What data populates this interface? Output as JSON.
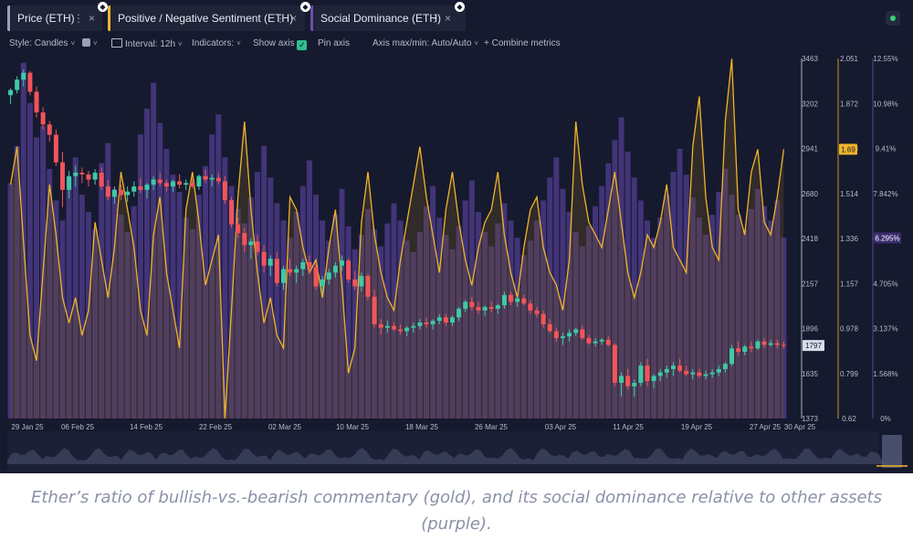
{
  "tabs": [
    {
      "label": "Price (ETH)",
      "color": "#9aa0b8"
    },
    {
      "label": "Positive / Negative Sentiment (ETH)",
      "color": "#f0b429"
    },
    {
      "label": "Social Dominance (ETH)",
      "color": "#6b4fa8"
    }
  ],
  "icons": {
    "tab_menu": "⋮",
    "tab_close": "×",
    "tab_asset": "ethereum-icon",
    "chevron": "˅",
    "checkmark": "✓"
  },
  "toolbar": {
    "style": "Style: Candles",
    "interval": "Interval: 12h",
    "indicators": "Indicators:",
    "show_axis": "Show axis",
    "pin_axis": "Pin axis",
    "axis_maxmin": "Axis max/min: Auto/Auto",
    "combine": "+ Combine metrics"
  },
  "caption": "Ether’s ratio of bullish-vs.-bearish commentary (gold), and its social dominance relative to other assets (purple).",
  "chart_data": {
    "type": "candlestick+line+bar",
    "x_ticks": [
      "29 Jan 25",
      "06 Feb 25",
      "14 Feb 25",
      "22 Feb 25",
      "02 Mar 25",
      "10 Mar 25",
      "18 Mar 25",
      "26 Mar 25",
      "03 Apr 25",
      "11 Apr 25",
      "19 Apr 25",
      "27 Apr 25",
      "30 Apr 25"
    ],
    "price_axis": {
      "ticks": [
        "3463",
        "3202",
        "2941",
        "2680",
        "2418",
        "2157",
        "1896",
        "1635",
        "1373"
      ],
      "min": 1373,
      "max": 3463,
      "current": "1797"
    },
    "sentiment_axis": {
      "ticks": [
        "2.051",
        "1.872",
        "1.693",
        "1.514",
        "1.336",
        "1.157",
        "0.978",
        "0.799",
        "0.62"
      ],
      "min": 0.62,
      "max": 2.051,
      "current": "1.69"
    },
    "dominance_axis": {
      "ticks": [
        "12.55%",
        "10.98%",
        "9.41%",
        "7.842%",
        "6.295%",
        "4.705%",
        "3.137%",
        "1.568%",
        "0%"
      ],
      "min": 0,
      "max": 12.55,
      "current": "6.295%"
    },
    "colors": {
      "up": "#3ec9a7",
      "down": "#f2545b",
      "sentiment": "#f0b429",
      "dominance": "#4a3a85",
      "background": "#161a2e"
    },
    "price_ohlc": [
      [
        3250,
        3290,
        3200,
        3280
      ],
      [
        3280,
        3360,
        3260,
        3340
      ],
      [
        3340,
        3400,
        3300,
        3380
      ],
      [
        3380,
        3390,
        3250,
        3270
      ],
      [
        3270,
        3300,
        3120,
        3150
      ],
      [
        3150,
        3180,
        3050,
        3080
      ],
      [
        3080,
        3100,
        2980,
        3020
      ],
      [
        3020,
        3050,
        2840,
        2860
      ],
      [
        2860,
        2920,
        2600,
        2700
      ],
      [
        2700,
        2810,
        2650,
        2780
      ],
      [
        2780,
        2840,
        2720,
        2800
      ],
      [
        2800,
        2830,
        2740,
        2790
      ],
      [
        2790,
        2810,
        2720,
        2760
      ],
      [
        2760,
        2820,
        2730,
        2800
      ],
      [
        2800,
        2830,
        2700,
        2720
      ],
      [
        2720,
        2760,
        2640,
        2660
      ],
      [
        2660,
        2720,
        2620,
        2700
      ],
      [
        2700,
        2730,
        2640,
        2670
      ],
      [
        2670,
        2720,
        2630,
        2690
      ],
      [
        2690,
        2750,
        2660,
        2720
      ],
      [
        2720,
        2770,
        2680,
        2700
      ],
      [
        2700,
        2740,
        2650,
        2730
      ],
      [
        2730,
        2780,
        2700,
        2760
      ],
      [
        2760,
        2800,
        2720,
        2740
      ],
      [
        2740,
        2760,
        2690,
        2720
      ],
      [
        2720,
        2760,
        2690,
        2750
      ],
      [
        2750,
        2790,
        2710,
        2730
      ],
      [
        2730,
        2760,
        2700,
        2740
      ],
      [
        2740,
        2770,
        2710,
        2720
      ],
      [
        2720,
        2790,
        2700,
        2780
      ],
      [
        2780,
        2820,
        2740,
        2760
      ],
      [
        2760,
        2790,
        2720,
        2770
      ],
      [
        2770,
        2800,
        2730,
        2750
      ],
      [
        2750,
        2780,
        2620,
        2640
      ],
      [
        2640,
        2660,
        2480,
        2500
      ],
      [
        2500,
        2540,
        2420,
        2450
      ],
      [
        2450,
        2480,
        2340,
        2380
      ],
      [
        2380,
        2420,
        2300,
        2400
      ],
      [
        2400,
        2440,
        2320,
        2340
      ],
      [
        2340,
        2380,
        2220,
        2260
      ],
      [
        2260,
        2320,
        2200,
        2300
      ],
      [
        2300,
        2340,
        2140,
        2160
      ],
      [
        2160,
        2260,
        2120,
        2240
      ],
      [
        2240,
        2300,
        2200,
        2220
      ],
      [
        2220,
        2260,
        2160,
        2240
      ],
      [
        2240,
        2300,
        2200,
        2280
      ],
      [
        2280,
        2320,
        2220,
        2250
      ],
      [
        2250,
        2280,
        2120,
        2140
      ],
      [
        2140,
        2200,
        2100,
        2180
      ],
      [
        2180,
        2240,
        2150,
        2220
      ],
      [
        2220,
        2280,
        2190,
        2260
      ],
      [
        2260,
        2320,
        2230,
        2290
      ],
      [
        2290,
        2300,
        2160,
        2180
      ],
      [
        2180,
        2230,
        2120,
        2140
      ],
      [
        2140,
        2220,
        2110,
        2200
      ],
      [
        2200,
        2210,
        2060,
        2080
      ],
      [
        2080,
        2120,
        1900,
        1920
      ],
      [
        1920,
        1950,
        1860,
        1900
      ],
      [
        1900,
        1940,
        1870,
        1910
      ],
      [
        1910,
        1930,
        1880,
        1890
      ],
      [
        1890,
        1920,
        1860,
        1880
      ],
      [
        1880,
        1910,
        1850,
        1900
      ],
      [
        1900,
        1930,
        1870,
        1910
      ],
      [
        1910,
        1950,
        1890,
        1930
      ],
      [
        1930,
        1960,
        1900,
        1920
      ],
      [
        1920,
        1950,
        1890,
        1940
      ],
      [
        1940,
        1980,
        1920,
        1960
      ],
      [
        1960,
        1980,
        1910,
        1930
      ],
      [
        1930,
        1970,
        1910,
        1960
      ],
      [
        1960,
        2020,
        1940,
        2010
      ],
      [
        2010,
        2060,
        1990,
        2050
      ],
      [
        2050,
        2080,
        2000,
        2020
      ],
      [
        2020,
        2050,
        1980,
        2000
      ],
      [
        2000,
        2030,
        1970,
        2020
      ],
      [
        2020,
        2050,
        1990,
        2010
      ],
      [
        2010,
        2040,
        1980,
        2030
      ],
      [
        2030,
        2110,
        2010,
        2090
      ],
      [
        2090,
        2110,
        2030,
        2050
      ],
      [
        2050,
        2080,
        2020,
        2070
      ],
      [
        2070,
        2090,
        2030,
        2040
      ],
      [
        2040,
        2060,
        1980,
        2000
      ],
      [
        2000,
        2020,
        1960,
        1980
      ],
      [
        1980,
        2000,
        1900,
        1920
      ],
      [
        1920,
        1950,
        1870,
        1880
      ],
      [
        1880,
        1900,
        1820,
        1840
      ],
      [
        1840,
        1870,
        1800,
        1850
      ],
      [
        1850,
        1890,
        1820,
        1870
      ],
      [
        1870,
        1900,
        1850,
        1890
      ],
      [
        1890,
        1910,
        1830,
        1840
      ],
      [
        1840,
        1860,
        1800,
        1810
      ],
      [
        1810,
        1840,
        1790,
        1820
      ],
      [
        1820,
        1840,
        1800,
        1830
      ],
      [
        1830,
        1850,
        1790,
        1800
      ],
      [
        1800,
        1810,
        1560,
        1580
      ],
      [
        1580,
        1640,
        1500,
        1620
      ],
      [
        1620,
        1660,
        1540,
        1560
      ],
      [
        1560,
        1600,
        1500,
        1580
      ],
      [
        1580,
        1700,
        1560,
        1680
      ],
      [
        1680,
        1720,
        1560,
        1590
      ],
      [
        1590,
        1630,
        1550,
        1620
      ],
      [
        1620,
        1660,
        1590,
        1640
      ],
      [
        1640,
        1680,
        1610,
        1660
      ],
      [
        1660,
        1700,
        1620,
        1680
      ],
      [
        1680,
        1720,
        1640,
        1650
      ],
      [
        1650,
        1680,
        1620,
        1630
      ],
      [
        1630,
        1660,
        1600,
        1640
      ],
      [
        1640,
        1660,
        1610,
        1620
      ],
      [
        1620,
        1650,
        1600,
        1630
      ],
      [
        1630,
        1660,
        1610,
        1640
      ],
      [
        1640,
        1680,
        1620,
        1660
      ],
      [
        1660,
        1700,
        1640,
        1690
      ],
      [
        1690,
        1800,
        1680,
        1780
      ],
      [
        1780,
        1820,
        1740,
        1760
      ],
      [
        1760,
        1800,
        1740,
        1790
      ],
      [
        1790,
        1820,
        1760,
        1780
      ],
      [
        1780,
        1830,
        1770,
        1820
      ],
      [
        1820,
        1840,
        1780,
        1800
      ],
      [
        1800,
        1830,
        1790,
        1810
      ],
      [
        1810,
        1830,
        1780,
        1800
      ],
      [
        1800,
        1820,
        1780,
        1797
      ]
    ],
    "sentiment": [
      1.55,
      1.7,
      1.32,
      0.95,
      0.85,
      1.2,
      1.55,
      1.35,
      1.1,
      1.0,
      1.1,
      0.95,
      1.05,
      1.4,
      1.25,
      1.1,
      1.3,
      1.6,
      1.45,
      1.3,
      1.05,
      0.95,
      1.35,
      1.5,
      1.2,
      1.05,
      0.9,
      1.45,
      1.6,
      1.4,
      1.15,
      1.25,
      1.35,
      0.62,
      1.05,
      1.5,
      1.8,
      1.45,
      1.2,
      1.0,
      1.1,
      0.95,
      0.9,
      1.5,
      1.45,
      1.3,
      1.2,
      1.25,
      1.1,
      1.3,
      1.45,
      1.15,
      0.8,
      0.9,
      1.4,
      1.6,
      1.35,
      1.2,
      1.1,
      1.05,
      1.25,
      1.4,
      1.55,
      1.7,
      1.5,
      1.35,
      1.2,
      1.45,
      1.6,
      1.4,
      1.25,
      1.15,
      1.3,
      1.4,
      1.45,
      1.6,
      1.35,
      1.2,
      1.1,
      1.3,
      1.45,
      1.5,
      1.3,
      1.2,
      1.15,
      1.05,
      1.25,
      1.8,
      1.55,
      1.4,
      1.35,
      1.3,
      1.45,
      1.6,
      1.4,
      1.2,
      1.1,
      1.2,
      1.35,
      1.3,
      1.4,
      1.55,
      1.3,
      1.25,
      1.2,
      1.7,
      1.9,
      1.5,
      1.3,
      1.25,
      1.8,
      2.05,
      1.45,
      1.35,
      1.6,
      1.69,
      1.4,
      1.35,
      1.5,
      1.69
    ],
    "dominance": [
      8.2,
      9.5,
      12.4,
      11.0,
      9.8,
      10.2,
      8.7,
      7.6,
      6.9,
      8.4,
      9.1,
      7.8,
      7.2,
      6.6,
      8.9,
      9.6,
      8.0,
      7.1,
      6.5,
      7.4,
      9.9,
      10.8,
      11.7,
      10.3,
      9.4,
      8.5,
      7.9,
      7.0,
      6.6,
      7.8,
      8.8,
      9.9,
      10.6,
      9.1,
      8.1,
      7.3,
      6.8,
      7.7,
      8.6,
      9.5,
      8.4,
      7.5,
      6.9,
      6.3,
      7.2,
      8.1,
      9.0,
      7.8,
      6.9,
      6.2,
      7.1,
      8.0,
      6.7,
      5.9,
      6.4,
      7.3,
      6.6,
      6.0,
      6.8,
      7.5,
      6.9,
      6.2,
      5.8,
      6.5,
      7.4,
      8.1,
      7.0,
      6.4,
      5.9,
      6.7,
      7.6,
      8.3,
      7.2,
      6.5,
      6.0,
      6.8,
      7.5,
      6.9,
      6.3,
      5.7,
      6.2,
      6.9,
      7.6,
      8.4,
      9.1,
      8.0,
      7.2,
      6.5,
      6.0,
      6.7,
      7.4,
      8.1,
      8.9,
      9.7,
      10.5,
      9.3,
      8.4,
      7.6,
      6.9,
      6.3,
      7.0,
      7.8,
      8.6,
      9.4,
      8.5,
      7.7,
      7.0,
      6.4,
      7.1,
      7.9,
      8.7,
      7.8,
      7.1,
      6.6,
      7.3,
      8.0,
      7.4,
      6.9,
      7.6,
      6.3
    ],
    "series": [
      {
        "name": "Price (ETH)"
      },
      {
        "name": "Positive / Negative Sentiment (ETH)"
      },
      {
        "name": "Social Dominance (ETH)"
      }
    ]
  }
}
